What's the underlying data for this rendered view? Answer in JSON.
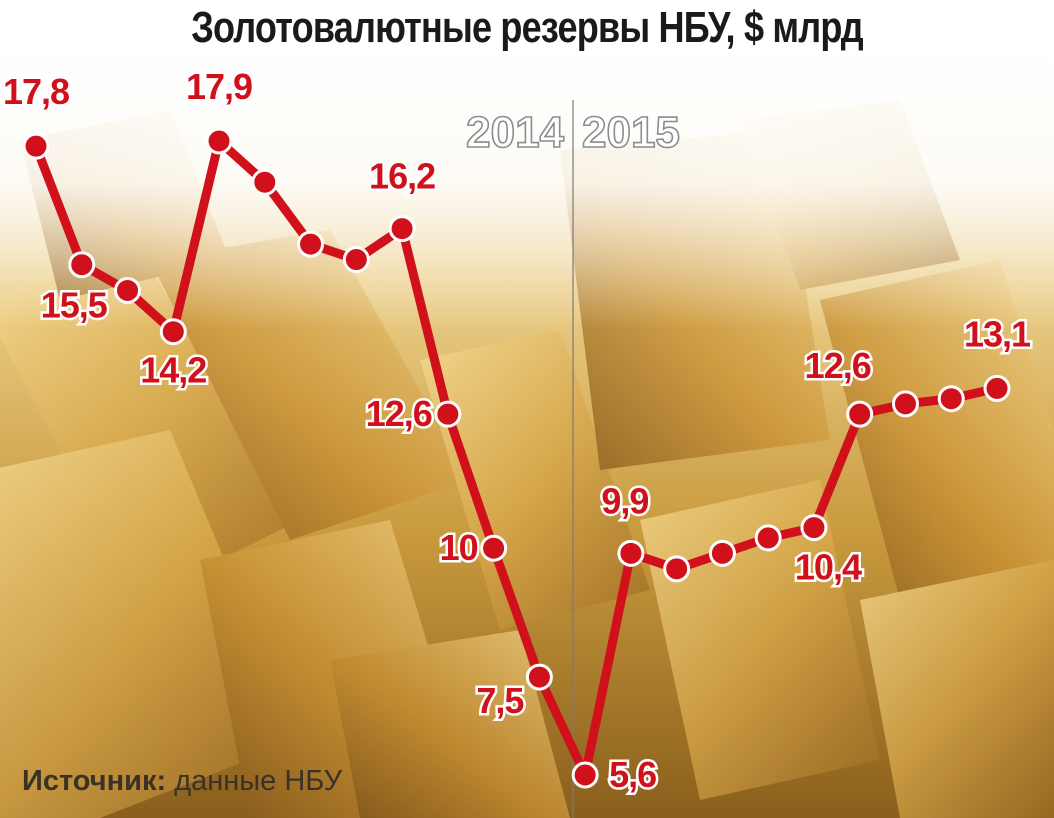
{
  "title": "Золотовалютные резервы НБУ, $ млрд",
  "source": {
    "label": "Источник:",
    "text": "данные НБУ"
  },
  "colors": {
    "line": "#d0101b",
    "marker_fill": "#d0101b",
    "marker_stroke": "#ffffff",
    "label": "#d0101b",
    "divider": "#7a7a7a",
    "background_tone": "gold-bars-photo"
  },
  "chart_data": {
    "type": "line",
    "title": "Золотовалютные резервы НБУ, $ млрд",
    "xlabel": "",
    "ylabel": "",
    "period_labels": [
      "2014",
      "2015"
    ],
    "grid": false,
    "legend": "none",
    "ylim": [
      5.6,
      17.9
    ],
    "series": [
      {
        "values": [
          17.8,
          15.5,
          15.0,
          14.2,
          17.9,
          17.1,
          15.9,
          15.6,
          16.2,
          12.6,
          10.0,
          7.5,
          5.6,
          9.9,
          9.6,
          9.9,
          10.2,
          10.4,
          12.6,
          12.8,
          12.9,
          13.1
        ]
      }
    ],
    "data_labels": [
      {
        "index": 0,
        "text": "17,8"
      },
      {
        "index": 1,
        "text": "15,5"
      },
      {
        "index": 3,
        "text": "14,2"
      },
      {
        "index": 4,
        "text": "17,9"
      },
      {
        "index": 8,
        "text": "16,2"
      },
      {
        "index": 9,
        "text": "12,6"
      },
      {
        "index": 10,
        "text": "10"
      },
      {
        "index": 11,
        "text": "7,5"
      },
      {
        "index": 12,
        "text": "5,6"
      },
      {
        "index": 13,
        "text": "9,9"
      },
      {
        "index": 17,
        "text": "10,4"
      },
      {
        "index": 18,
        "text": "12,6"
      },
      {
        "index": 21,
        "text": "13,1"
      }
    ],
    "year_split_after_index": 12
  }
}
